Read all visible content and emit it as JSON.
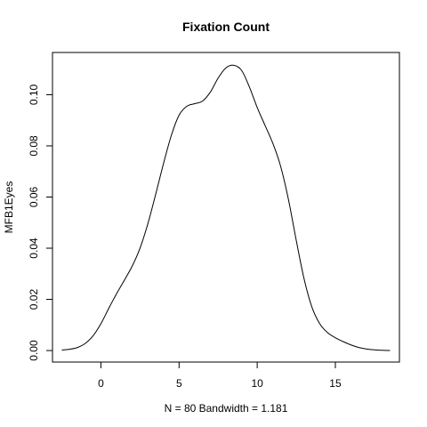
{
  "chart_data": {
    "type": "line",
    "title": "Fixation Count",
    "xlabel": "N = 80   Bandwidth = 1.181",
    "ylabel": "MFB1Eyes",
    "xlim": [
      -3.1,
      19.1
    ],
    "ylim": [
      -0.0045,
      0.1165
    ],
    "x_ticks": [
      0,
      5,
      10,
      15
    ],
    "y_ticks": [
      0.0,
      0.02,
      0.04,
      0.06,
      0.08,
      0.1
    ],
    "x_tick_labels": [
      "0",
      "5",
      "10",
      "15"
    ],
    "y_tick_labels": [
      "0.00",
      "0.02",
      "0.04",
      "0.06",
      "0.08",
      "0.10"
    ],
    "grid": false,
    "series": [
      {
        "x": [
          -2.5,
          -2.0,
          -1.5,
          -1.0,
          -0.5,
          0.0,
          0.5,
          1.0,
          1.5,
          2.0,
          2.5,
          3.0,
          3.5,
          4.0,
          4.5,
          5.0,
          5.5,
          6.0,
          6.5,
          7.0,
          7.5,
          8.0,
          8.5,
          9.0,
          9.5,
          10.0,
          10.5,
          11.0,
          11.5,
          12.0,
          12.5,
          13.0,
          13.5,
          14.0,
          14.5,
          15.0,
          15.5,
          16.0,
          16.5,
          17.0,
          17.5,
          18.0,
          18.5
        ],
        "y": [
          0.0002,
          0.0005,
          0.0012,
          0.0028,
          0.0058,
          0.0105,
          0.0165,
          0.0222,
          0.0275,
          0.033,
          0.04,
          0.0495,
          0.061,
          0.073,
          0.084,
          0.092,
          0.0955,
          0.0965,
          0.0975,
          0.101,
          0.1065,
          0.1105,
          0.1115,
          0.1095,
          0.103,
          0.095,
          0.088,
          0.081,
          0.072,
          0.059,
          0.043,
          0.028,
          0.017,
          0.0105,
          0.007,
          0.005,
          0.0035,
          0.0022,
          0.0012,
          0.0006,
          0.0003,
          0.0001,
          0.0
        ]
      }
    ]
  }
}
